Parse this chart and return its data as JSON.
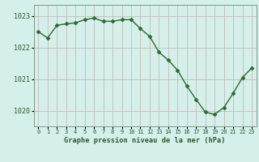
{
  "x": [
    0,
    1,
    2,
    3,
    4,
    5,
    6,
    7,
    8,
    9,
    10,
    11,
    12,
    13,
    14,
    15,
    16,
    17,
    18,
    19,
    20,
    21,
    22,
    23
  ],
  "y": [
    1022.5,
    1022.3,
    1022.7,
    1022.75,
    1022.78,
    1022.88,
    1022.93,
    1022.83,
    1022.83,
    1022.88,
    1022.88,
    1022.6,
    1022.35,
    1021.85,
    1021.6,
    1021.28,
    1020.78,
    1020.35,
    1019.95,
    1019.88,
    1020.1,
    1020.55,
    1021.05,
    1021.35
  ],
  "line_color": "#2d6a2d",
  "marker": "D",
  "marker_size": 2.5,
  "bg_color": "#d5f0eb",
  "grid_color": "#c8b8b8",
  "title": "Graphe pression niveau de la mer (hPa)",
  "ylabel_ticks": [
    1020,
    1021,
    1022,
    1023
  ],
  "xlim": [
    -0.5,
    23.5
  ],
  "ylim": [
    1019.5,
    1023.35
  ],
  "xtick_labels": [
    "0",
    "1",
    "2",
    "3",
    "4",
    "5",
    "6",
    "7",
    "8",
    "9",
    "10",
    "11",
    "12",
    "13",
    "14",
    "15",
    "16",
    "17",
    "18",
    "19",
    "20",
    "21",
    "22",
    "23"
  ]
}
